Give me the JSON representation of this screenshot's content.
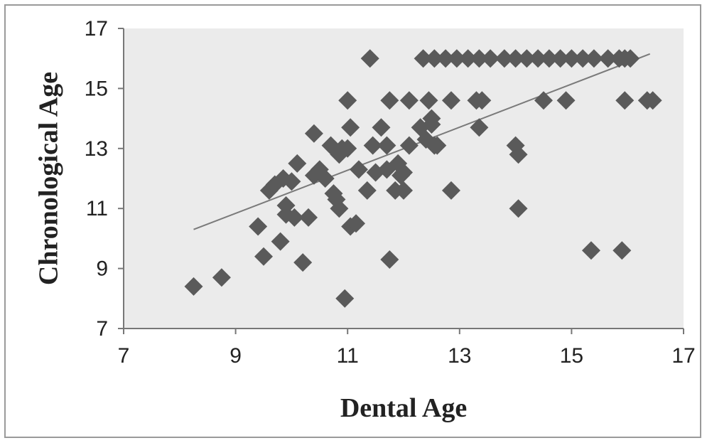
{
  "chart_data": {
    "type": "scatter",
    "title": "",
    "xlabel": "Dental Age",
    "ylabel": "Chronological Age",
    "xlim": [
      7,
      17
    ],
    "ylim": [
      7,
      17
    ],
    "xticks": [
      7,
      9,
      11,
      13,
      15,
      17
    ],
    "yticks": [
      7,
      9,
      11,
      13,
      15,
      17
    ],
    "grid": false,
    "marker": "diamond",
    "colors": {
      "marker": "#5a5a5a",
      "plot_bg": "#ebebeb",
      "trendline": "#7a7a7a"
    },
    "points": [
      [
        8.25,
        8.4
      ],
      [
        8.75,
        8.7
      ],
      [
        9.4,
        10.4
      ],
      [
        9.5,
        9.4
      ],
      [
        9.6,
        11.6
      ],
      [
        9.8,
        9.9
      ],
      [
        9.7,
        11.8
      ],
      [
        9.85,
        12.0
      ],
      [
        9.9,
        11.1
      ],
      [
        9.9,
        10.8
      ],
      [
        10.0,
        11.9
      ],
      [
        10.05,
        10.7
      ],
      [
        10.1,
        12.5
      ],
      [
        10.2,
        9.2
      ],
      [
        10.3,
        10.7
      ],
      [
        10.4,
        13.5
      ],
      [
        10.4,
        12.1
      ],
      [
        10.5,
        12.3
      ],
      [
        10.6,
        12.0
      ],
      [
        10.7,
        13.1
      ],
      [
        10.75,
        11.5
      ],
      [
        10.8,
        11.3
      ],
      [
        10.85,
        11.0
      ],
      [
        10.9,
        13.0
      ],
      [
        10.85,
        12.8
      ],
      [
        10.95,
        8.0
      ],
      [
        11.0,
        14.6
      ],
      [
        11.0,
        13.0
      ],
      [
        11.05,
        13.7
      ],
      [
        11.05,
        10.4
      ],
      [
        11.15,
        10.5
      ],
      [
        11.2,
        12.3
      ],
      [
        11.35,
        11.6
      ],
      [
        11.45,
        13.1
      ],
      [
        11.4,
        16.0
      ],
      [
        11.5,
        12.2
      ],
      [
        11.6,
        13.7
      ],
      [
        11.7,
        13.1
      ],
      [
        11.75,
        9.3
      ],
      [
        11.7,
        12.3
      ],
      [
        11.75,
        14.6
      ],
      [
        11.85,
        11.6
      ],
      [
        11.9,
        12.5
      ],
      [
        11.95,
        12.1
      ],
      [
        12.0,
        11.6
      ],
      [
        12.0,
        12.2
      ],
      [
        12.1,
        14.6
      ],
      [
        12.1,
        13.1
      ],
      [
        12.3,
        13.7
      ],
      [
        12.4,
        13.3
      ],
      [
        12.45,
        14.6
      ],
      [
        12.5,
        13.8
      ],
      [
        12.5,
        14.0
      ],
      [
        12.55,
        13.1
      ],
      [
        12.6,
        13.1
      ],
      [
        12.85,
        11.6
      ],
      [
        12.85,
        14.6
      ],
      [
        13.3,
        14.6
      ],
      [
        13.35,
        13.7
      ],
      [
        13.4,
        14.6
      ],
      [
        14.0,
        13.1
      ],
      [
        14.05,
        12.8
      ],
      [
        14.05,
        11.0
      ],
      [
        14.5,
        14.6
      ],
      [
        14.9,
        14.6
      ],
      [
        15.35,
        9.6
      ],
      [
        15.9,
        9.6
      ],
      [
        15.95,
        14.6
      ],
      [
        16.35,
        14.6
      ],
      [
        16.45,
        14.6
      ],
      [
        12.35,
        16.0
      ],
      [
        12.55,
        16.0
      ],
      [
        12.75,
        16.0
      ],
      [
        12.95,
        16.0
      ],
      [
        13.15,
        16.0
      ],
      [
        13.35,
        16.0
      ],
      [
        13.55,
        16.0
      ],
      [
        13.8,
        16.0
      ],
      [
        14.0,
        16.0
      ],
      [
        14.2,
        16.0
      ],
      [
        14.4,
        16.0
      ],
      [
        14.6,
        16.0
      ],
      [
        14.8,
        16.0
      ],
      [
        15.0,
        16.0
      ],
      [
        15.2,
        16.0
      ],
      [
        15.4,
        16.0
      ],
      [
        15.65,
        16.0
      ],
      [
        15.85,
        16.0
      ],
      [
        15.95,
        16.0
      ],
      [
        16.05,
        16.0
      ]
    ],
    "trendline": {
      "x": [
        8.25,
        16.4
      ],
      "y": [
        10.3,
        16.15
      ]
    }
  }
}
